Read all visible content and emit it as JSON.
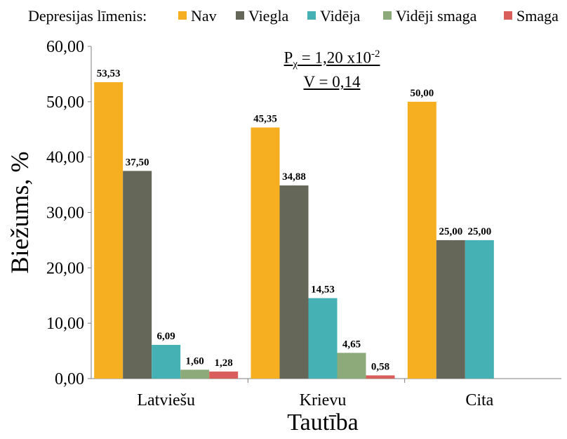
{
  "legend": {
    "title": "Depresijas līmenis:"
  },
  "stats": {
    "p_prefix": "P",
    "p_sub": "χ",
    "p_value": " = 1,20 x10",
    "p_exp": "-2",
    "v_text": "V = 0,14"
  },
  "colors": {
    "Nav": "#F5AF21",
    "Viegla": "#656859",
    "Vidēja": "#45B1B4",
    "Vidēji smaga": "#8DAA7A",
    "Smaga": "#D95D5A"
  },
  "chart_data": {
    "type": "bar",
    "title": "",
    "xlabel": "Tautība",
    "ylabel": "Biežums, %",
    "ylim": [
      0,
      60
    ],
    "yticks": [
      "0,00",
      "10,00",
      "20,00",
      "30,00",
      "40,00",
      "50,00",
      "60,00"
    ],
    "grid": false,
    "legend_position": "top",
    "categories": [
      "Latviešu",
      "Krievu",
      "Cita"
    ],
    "series": [
      {
        "name": "Nav",
        "values": [
          53.53,
          45.35,
          50.0
        ],
        "labels": [
          "53,53",
          "45,35",
          "50,00"
        ]
      },
      {
        "name": "Viegla",
        "values": [
          37.5,
          34.88,
          25.0
        ],
        "labels": [
          "37,50",
          "34,88",
          "25,00"
        ]
      },
      {
        "name": "Vidēja",
        "values": [
          6.09,
          14.53,
          25.0
        ],
        "labels": [
          "6,09",
          "14,53",
          "25,00"
        ]
      },
      {
        "name": "Vidēji smaga",
        "values": [
          1.6,
          4.65,
          null
        ],
        "labels": [
          "1,60",
          "4,65",
          null
        ]
      },
      {
        "name": "Smaga",
        "values": [
          1.28,
          0.58,
          null
        ],
        "labels": [
          "1,28",
          "0,58",
          null
        ]
      }
    ]
  }
}
